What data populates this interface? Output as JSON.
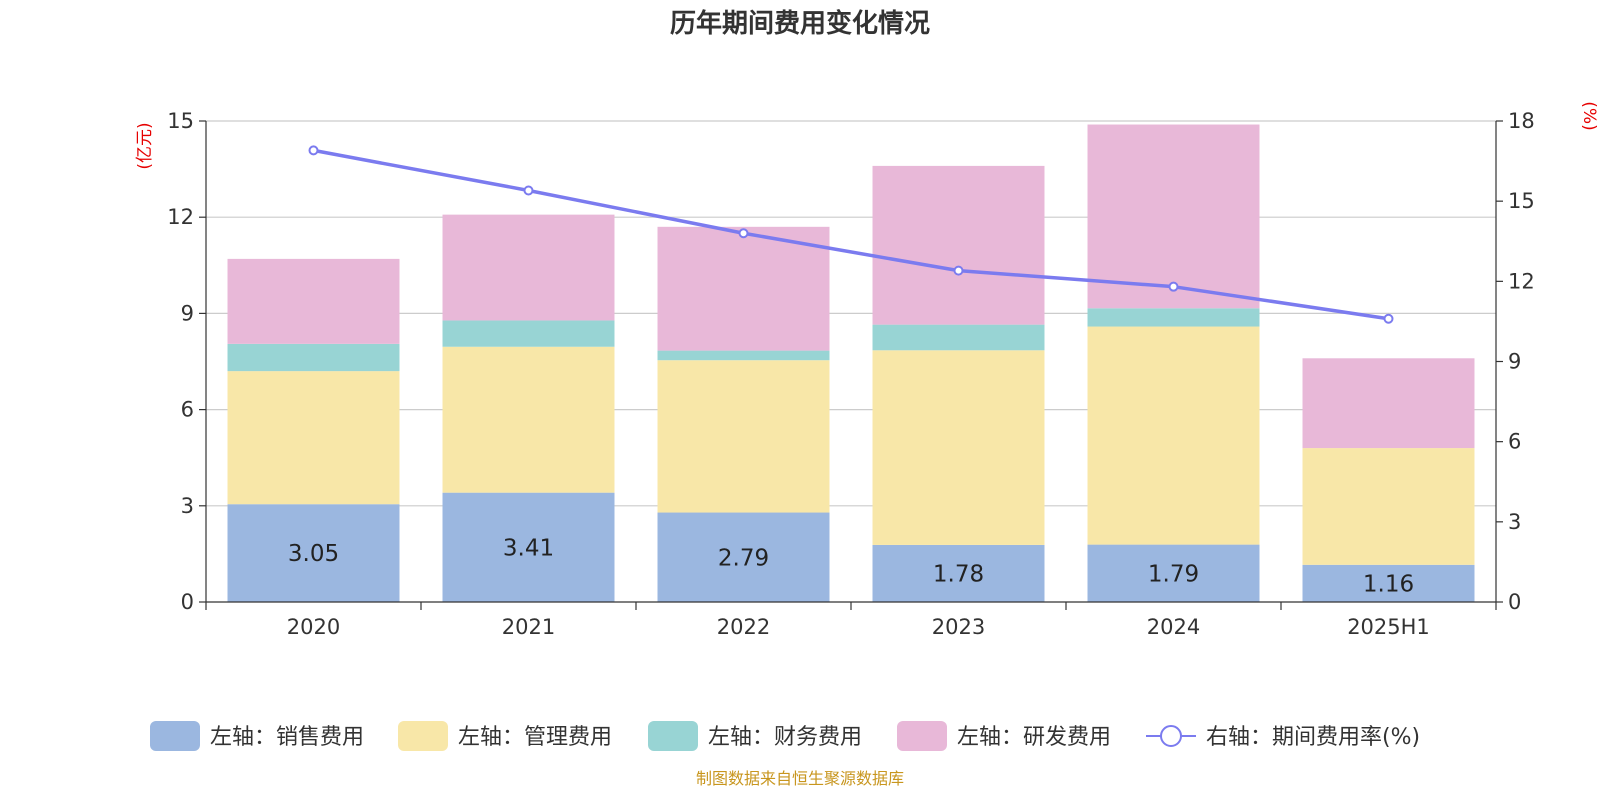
{
  "chart_data": {
    "type": "bar",
    "title": "历年期间费用变化情况",
    "categories": [
      "2020",
      "2021",
      "2022",
      "2023",
      "2024",
      "2025H1"
    ],
    "left_axis": {
      "unit": "(亿元)",
      "ylim": [
        0,
        15
      ],
      "ticks": [
        "0",
        "3",
        "6",
        "9",
        "12",
        "15"
      ]
    },
    "right_axis": {
      "unit": "(%)",
      "ylim": [
        0,
        18
      ],
      "ticks": [
        "0",
        "3",
        "6",
        "9",
        "12",
        "15",
        "18"
      ]
    },
    "grid": true,
    "legend_position": "bottom",
    "series": [
      {
        "name": "左轴：销售费用",
        "kind": "bar",
        "axis": "left",
        "color": "#9bb7e0",
        "values": [
          3.05,
          3.41,
          2.79,
          1.78,
          1.79,
          1.16
        ],
        "labels": [
          "3.05",
          "3.41",
          "2.79",
          "1.78",
          "1.79",
          "1.16"
        ]
      },
      {
        "name": "左轴：管理费用",
        "kind": "bar",
        "axis": "left",
        "color": "#f8e7a8",
        "values": [
          4.15,
          4.55,
          4.75,
          6.07,
          6.8,
          3.64
        ]
      },
      {
        "name": "左轴：财务费用",
        "kind": "bar",
        "axis": "left",
        "color": "#98d4d4",
        "values": [
          0.85,
          0.82,
          0.3,
          0.8,
          0.57,
          0
        ]
      },
      {
        "name": "左轴：研发费用",
        "kind": "bar",
        "axis": "left",
        "color": "#e8b8d8",
        "values": [
          2.65,
          3.3,
          3.86,
          4.95,
          5.73,
          2.8
        ]
      },
      {
        "name": "右轴：期间费用率(%)",
        "kind": "line",
        "axis": "right",
        "color": "#7b7bef",
        "values": [
          16.9,
          15.4,
          13.8,
          12.4,
          11.8,
          10.6
        ]
      }
    ]
  },
  "footer": {
    "source": "制图数据来自恒生聚源数据库"
  }
}
